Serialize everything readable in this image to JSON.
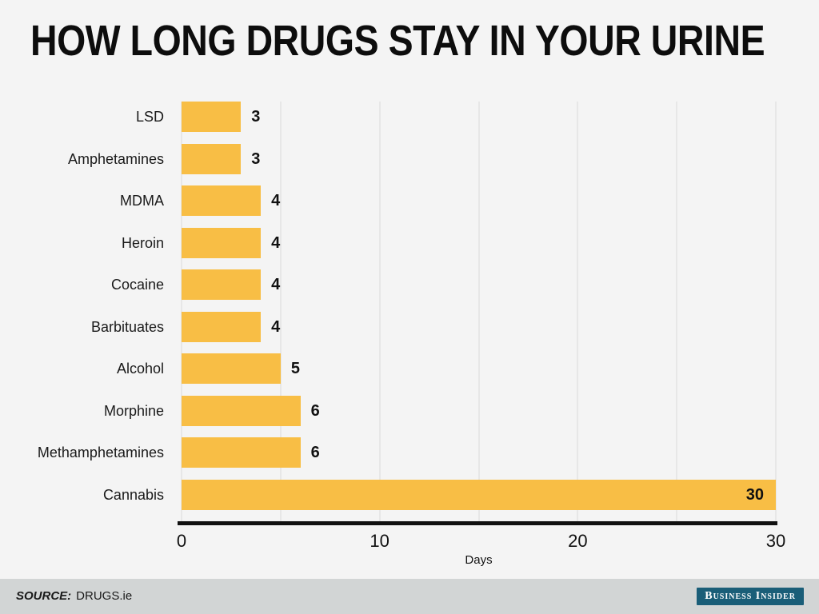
{
  "title": "HOW LONG DRUGS STAY IN YOUR URINE",
  "chart_data": {
    "type": "bar",
    "orientation": "horizontal",
    "title": "HOW LONG DRUGS STAY IN YOUR URINE",
    "categories": [
      "LSD",
      "Amphetamines",
      "MDMA",
      "Heroin",
      "Cocaine",
      "Barbituates",
      "Alcohol",
      "Morphine",
      "Methamphetamines",
      "Cannabis"
    ],
    "values": [
      3,
      3,
      4,
      4,
      4,
      4,
      5,
      6,
      6,
      30
    ],
    "xlabel": "Days",
    "xlim": [
      0,
      30
    ],
    "xticks": [
      0,
      10,
      20,
      30
    ],
    "gridline_interval": 5,
    "grid": true,
    "legend": "none",
    "bar_color": "#F8BE45",
    "grid_color": "#e7e7e7",
    "axis_color": "#111111",
    "background_color": "#f4f4f4"
  },
  "footer": {
    "source_prefix": "SOURCE:",
    "source_value": "DRUGS.ie",
    "brand": "Business Insider",
    "brand_color": "#1A5E78",
    "band_color": "#d2d5d5"
  }
}
